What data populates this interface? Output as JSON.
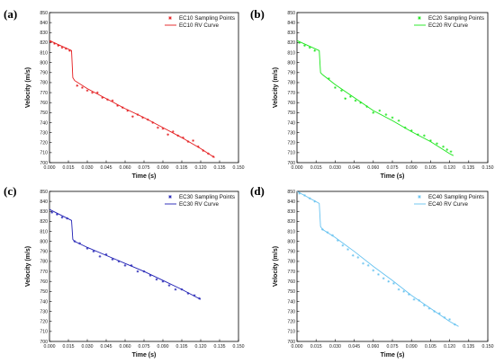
{
  "chart_data": [
    {
      "type": "scatter",
      "panel_label": "(a)",
      "xlabel": "Time (s)",
      "ylabel": "Velocity (m/s)",
      "xlim": [
        0,
        0.15
      ],
      "ylim": [
        700,
        850
      ],
      "xticks": [
        "0.000",
        "0.015",
        "0.030",
        "0.045",
        "0.060",
        "0.075",
        "0.090",
        "0.105",
        "0.120",
        "0.135",
        "0.150"
      ],
      "yticks": [
        "700",
        "710",
        "720",
        "730",
        "740",
        "750",
        "760",
        "770",
        "780",
        "790",
        "800",
        "810",
        "820",
        "830",
        "840",
        "850"
      ],
      "legend_position": "top-right",
      "color": "#e41a1c",
      "series": [
        {
          "name": "EC10 Sampling Points",
          "kind": "points",
          "x": [
            0.001,
            0.004,
            0.007,
            0.01,
            0.013,
            0.016,
            0.022,
            0.026,
            0.03,
            0.034,
            0.038,
            0.042,
            0.046,
            0.05,
            0.054,
            0.058,
            0.062,
            0.066,
            0.07,
            0.074,
            0.078,
            0.082,
            0.086,
            0.09,
            0.094,
            0.098,
            0.102,
            0.106,
            0.11,
            0.114,
            0.118,
            0.122,
            0.126,
            0.13
          ],
          "y": [
            821,
            819,
            817,
            815,
            814,
            812,
            777,
            775,
            772,
            770,
            770,
            765,
            763,
            762,
            757,
            755,
            752,
            746,
            748,
            745,
            743,
            740,
            735,
            734,
            728,
            731,
            727,
            725,
            721,
            722,
            716,
            712,
            709,
            706
          ]
        },
        {
          "name": "EC10 RV Curve",
          "kind": "line",
          "x": [
            0.0,
            0.0175,
            0.0185,
            0.02,
            0.03,
            0.045,
            0.06,
            0.075,
            0.09,
            0.105,
            0.12,
            0.131
          ],
          "y": [
            822,
            812,
            785,
            782,
            774,
            764,
            754,
            745,
            735,
            725,
            714,
            705
          ]
        }
      ]
    },
    {
      "type": "scatter",
      "panel_label": "(b)",
      "xlabel": "Time (s)",
      "ylabel": "Velocity (m/s)",
      "xlim": [
        0,
        0.15
      ],
      "ylim": [
        700,
        850
      ],
      "xticks": [
        "0.000",
        "0.015",
        "0.030",
        "0.045",
        "0.060",
        "0.075",
        "0.090",
        "0.105",
        "0.120",
        "0.135",
        "0.150"
      ],
      "yticks": [
        "700",
        "710",
        "720",
        "730",
        "740",
        "750",
        "760",
        "770",
        "780",
        "790",
        "800",
        "810",
        "820",
        "830",
        "840",
        "850"
      ],
      "legend_position": "top-right",
      "color": "#19e619",
      "series": [
        {
          "name": "EC20 Sampling Points",
          "kind": "points",
          "x": [
            0.002,
            0.006,
            0.01,
            0.014,
            0.025,
            0.03,
            0.035,
            0.038,
            0.042,
            0.046,
            0.05,
            0.055,
            0.06,
            0.065,
            0.07,
            0.075,
            0.08,
            0.085,
            0.09,
            0.095,
            0.1,
            0.105,
            0.11,
            0.115,
            0.118,
            0.121
          ],
          "y": [
            820,
            817,
            815,
            812,
            784,
            775,
            772,
            764,
            766,
            762,
            760,
            756,
            750,
            752,
            748,
            745,
            742,
            735,
            732,
            728,
            727,
            722,
            719,
            716,
            713,
            711
          ]
        },
        {
          "name": "EC20 RV Curve",
          "kind": "line",
          "x": [
            0.0,
            0.0175,
            0.0185,
            0.02,
            0.03,
            0.045,
            0.06,
            0.075,
            0.09,
            0.105,
            0.12,
            0.123
          ],
          "y": [
            822,
            812,
            790,
            788,
            778,
            765,
            752,
            742,
            731,
            721,
            709,
            707
          ]
        }
      ]
    },
    {
      "type": "scatter",
      "panel_label": "(c)",
      "xlabel": "Time (s)",
      "ylabel": "Velocity (m/s)",
      "xlim": [
        0,
        0.15
      ],
      "ylim": [
        700,
        850
      ],
      "xticks": [
        "0.000",
        "0.015",
        "0.030",
        "0.045",
        "0.060",
        "0.075",
        "0.090",
        "0.105",
        "0.120",
        "0.135",
        "0.150"
      ],
      "yticks": [
        "700",
        "710",
        "720",
        "730",
        "740",
        "750",
        "760",
        "770",
        "780",
        "790",
        "800",
        "810",
        "820",
        "830",
        "840",
        "850"
      ],
      "legend_position": "top-right",
      "color": "#1f1fb4",
      "series": [
        {
          "name": "EC30 Sampling Points",
          "kind": "points",
          "x": [
            0.002,
            0.006,
            0.01,
            0.014,
            0.02,
            0.024,
            0.03,
            0.035,
            0.04,
            0.045,
            0.05,
            0.055,
            0.06,
            0.065,
            0.07,
            0.075,
            0.08,
            0.085,
            0.09,
            0.095,
            0.1,
            0.105,
            0.11,
            0.115,
            0.119
          ],
          "y": [
            829,
            827,
            824,
            823,
            800,
            798,
            793,
            790,
            785,
            787,
            782,
            780,
            776,
            776,
            770,
            770,
            766,
            762,
            760,
            756,
            752,
            752,
            748,
            746,
            743
          ]
        },
        {
          "name": "EC30 RV Curve",
          "kind": "line",
          "x": [
            0.0,
            0.0175,
            0.0185,
            0.02,
            0.03,
            0.045,
            0.06,
            0.075,
            0.09,
            0.105,
            0.12
          ],
          "y": [
            832,
            821,
            802,
            800,
            794,
            786,
            778,
            770,
            761,
            752,
            742
          ]
        }
      ]
    },
    {
      "type": "scatter",
      "panel_label": "(d)",
      "xlabel": "Time (s)",
      "ylabel": "Velocity (m/s)",
      "xlim": [
        0,
        0.15
      ],
      "ylim": [
        700,
        850
      ],
      "xticks": [
        "0.000",
        "0.015",
        "0.030",
        "0.045",
        "0.060",
        "0.075",
        "0.090",
        "0.105",
        "0.120",
        "0.135",
        "0.150"
      ],
      "yticks": [
        "700",
        "710",
        "720",
        "730",
        "740",
        "750",
        "760",
        "770",
        "780",
        "790",
        "800",
        "810",
        "820",
        "830",
        "840",
        "850"
      ],
      "legend_position": "top-right",
      "color": "#66c2f0",
      "series": [
        {
          "name": "EC40 Sampling Points",
          "kind": "points",
          "x": [
            0.002,
            0.006,
            0.01,
            0.014,
            0.02,
            0.024,
            0.028,
            0.032,
            0.036,
            0.04,
            0.044,
            0.048,
            0.052,
            0.056,
            0.06,
            0.064,
            0.068,
            0.072,
            0.076,
            0.08,
            0.084,
            0.088,
            0.092,
            0.096,
            0.1,
            0.104,
            0.108,
            0.112,
            0.116,
            0.12,
            0.124
          ],
          "y": [
            848,
            846,
            843,
            840,
            812,
            809,
            806,
            801,
            796,
            792,
            786,
            784,
            778,
            776,
            771,
            767,
            763,
            760,
            758,
            752,
            750,
            747,
            742,
            741,
            736,
            733,
            730,
            728,
            724,
            722,
            717
          ]
        },
        {
          "name": "EC40 RV Curve",
          "kind": "line",
          "x": [
            0.0,
            0.0175,
            0.0185,
            0.02,
            0.03,
            0.045,
            0.06,
            0.075,
            0.09,
            0.105,
            0.12,
            0.127
          ],
          "y": [
            850,
            838,
            815,
            812,
            804,
            790,
            775,
            761,
            746,
            733,
            720,
            715
          ]
        }
      ]
    }
  ]
}
